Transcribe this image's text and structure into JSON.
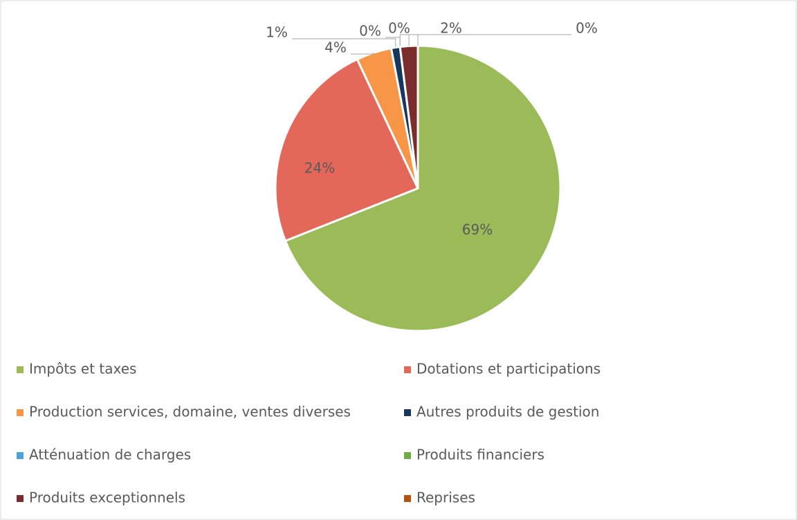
{
  "chart_data": {
    "type": "pie",
    "categories": [
      "Impôts et taxes",
      "Dotations et participations",
      "Production services, domaine, ventes diverses",
      "Autres produits de gestion",
      "Atténuation de charges",
      "Produits financiers",
      "Produits exceptionnels",
      "Reprises"
    ],
    "values": [
      69,
      24,
      4,
      1,
      0,
      0,
      2,
      0
    ],
    "value_labels": [
      "69%",
      "24%",
      "4%",
      "1%",
      "0%",
      "0%",
      "2%",
      "0%"
    ],
    "colors": [
      "#9bbb59",
      "#e3685a",
      "#f79646",
      "#17375e",
      "#4aa3df",
      "#70ad47",
      "#7b2c2c",
      "#b5530f"
    ],
    "legend": "bottom"
  }
}
